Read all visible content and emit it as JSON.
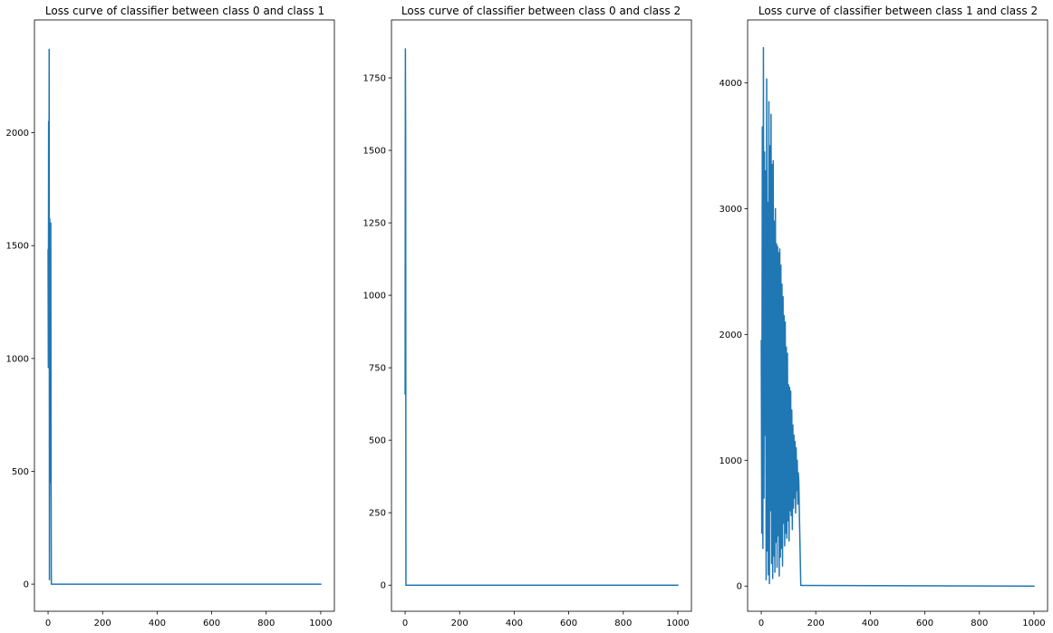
{
  "chart_data": [
    {
      "type": "line",
      "title": "Loss curve of classifier between class 0 and class 1",
      "xlabel": "",
      "ylabel": "",
      "xlim": [
        -50,
        1050
      ],
      "ylim": [
        -120,
        2500
      ],
      "xticks": [
        0,
        200,
        400,
        600,
        800,
        1000
      ],
      "yticks": [
        0,
        500,
        1000,
        1500,
        2000
      ],
      "grid": false,
      "color": "#1f77b4",
      "series": [
        {
          "x": [
            0,
            1,
            2,
            3,
            4,
            5,
            6,
            7,
            8,
            9,
            10,
            11,
            12,
            13,
            15,
            1000
          ],
          "y": [
            1480,
            960,
            2050,
            1100,
            2370,
            20,
            1620,
            950,
            1560,
            450,
            1600,
            480,
            0,
            0,
            0,
            0
          ]
        }
      ]
    },
    {
      "type": "line",
      "title": "Loss curve of classifier between class 0 and class 2",
      "xlabel": "",
      "ylabel": "",
      "xlim": [
        -50,
        1050
      ],
      "ylim": [
        -90,
        1950
      ],
      "xticks": [
        0,
        200,
        400,
        600,
        800,
        1000
      ],
      "yticks": [
        0,
        250,
        500,
        750,
        1000,
        1250,
        1500,
        1750
      ],
      "grid": false,
      "color": "#1f77b4",
      "series": [
        {
          "x": [
            0,
            1,
            2,
            3,
            4,
            5,
            1000
          ],
          "y": [
            660,
            1850,
            1550,
            0,
            0,
            0,
            0
          ]
        }
      ]
    },
    {
      "type": "line",
      "title": "Loss curve of classifier between class 1 and class 2",
      "xlabel": "",
      "ylabel": "",
      "xlim": [
        -50,
        1050
      ],
      "ylim": [
        -200,
        4500
      ],
      "xticks": [
        0,
        200,
        400,
        600,
        800,
        1000
      ],
      "yticks": [
        0,
        1000,
        2000,
        3000,
        4000
      ],
      "grid": false,
      "color": "#1f77b4",
      "noisy_segment": {
        "x_start": 0,
        "x_end": 140,
        "peak": 4280,
        "settle_x": 145
      },
      "series": [
        {
          "x": [
            0,
            2,
            4,
            6,
            8,
            10,
            12,
            14,
            16,
            18,
            20,
            22,
            24,
            26,
            28,
            30,
            32,
            34,
            36,
            38,
            40,
            42,
            44,
            46,
            48,
            50,
            52,
            54,
            56,
            58,
            60,
            62,
            64,
            66,
            68,
            70,
            72,
            74,
            76,
            78,
            80,
            82,
            84,
            86,
            88,
            90,
            92,
            94,
            96,
            98,
            100,
            102,
            104,
            106,
            108,
            110,
            112,
            114,
            116,
            118,
            120,
            122,
            124,
            126,
            128,
            130,
            132,
            134,
            136,
            138,
            140,
            145,
            1000
          ],
          "y": [
            1950,
            420,
            3650,
            300,
            4280,
            700,
            3450,
            1200,
            3300,
            50,
            4030,
            280,
            3050,
            90,
            3850,
            20,
            3500,
            600,
            3750,
            180,
            3350,
            60,
            3380,
            240,
            2900,
            110,
            3000,
            350,
            2720,
            150,
            2700,
            400,
            2650,
            80,
            2680,
            230,
            2550,
            300,
            2400,
            160,
            2300,
            500,
            2150,
            320,
            2100,
            420,
            1900,
            380,
            1850,
            520,
            1600,
            360,
            1580,
            600,
            1550,
            560,
            1400,
            450,
            1280,
            620,
            1200,
            700,
            1150,
            580,
            1100,
            760,
            1000,
            650,
            900,
            820,
            560,
            5,
            0
          ]
        }
      ]
    }
  ]
}
